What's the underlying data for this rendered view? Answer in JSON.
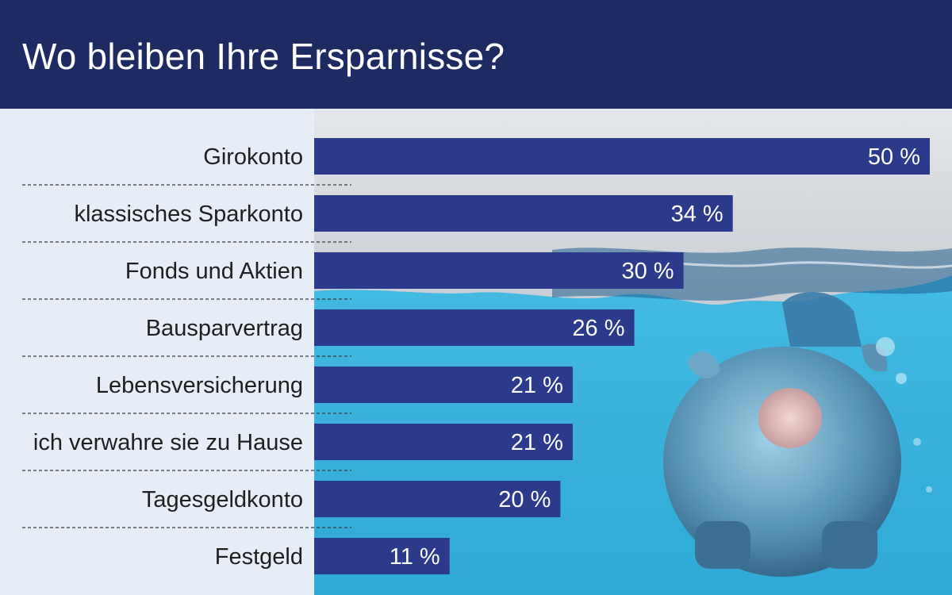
{
  "header": {
    "title": "Wo bleiben Ihre Ersparnisse?"
  },
  "colors": {
    "header_bg": "#1e2b63",
    "bar": "#2c3a8c",
    "label_panel": "#e6edf6",
    "water": "#3fb6dc"
  },
  "chart_data": {
    "type": "bar",
    "orientation": "horizontal",
    "title": "Wo bleiben Ihre Ersparnisse?",
    "categories": [
      "Girokonto",
      "klassisches Sparkonto",
      "Fonds und Aktien",
      "Bausparvertrag",
      "Lebensversicherung",
      "ich verwahre sie zu Hause",
      "Tagesgeldkonto",
      "Festgeld"
    ],
    "values": [
      50,
      34,
      30,
      26,
      21,
      21,
      20,
      11
    ],
    "value_labels": [
      "50 %",
      "34 %",
      "30 %",
      "26 %",
      "21 %",
      "21 %",
      "20 %",
      "11 %"
    ],
    "unit": "%",
    "xlim": [
      0,
      52
    ],
    "grid": false,
    "legend": "none"
  }
}
